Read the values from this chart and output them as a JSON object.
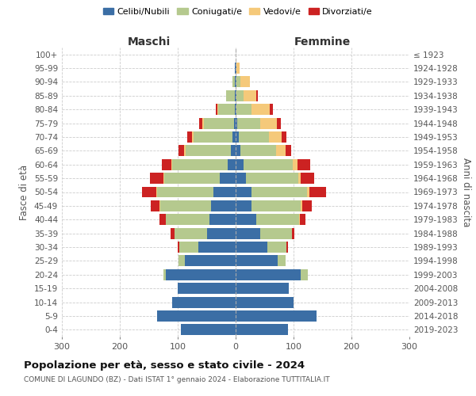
{
  "age_groups": [
    "0-4",
    "5-9",
    "10-14",
    "15-19",
    "20-24",
    "25-29",
    "30-34",
    "35-39",
    "40-44",
    "45-49",
    "50-54",
    "55-59",
    "60-64",
    "65-69",
    "70-74",
    "75-79",
    "80-84",
    "85-89",
    "90-94",
    "95-99",
    "100+"
  ],
  "birth_years": [
    "2019-2023",
    "2014-2018",
    "2009-2013",
    "2004-2008",
    "1999-2003",
    "1994-1998",
    "1989-1993",
    "1984-1988",
    "1979-1983",
    "1974-1978",
    "1969-1973",
    "1964-1968",
    "1959-1963",
    "1954-1958",
    "1949-1953",
    "1944-1948",
    "1939-1943",
    "1934-1938",
    "1929-1933",
    "1924-1928",
    "≤ 1923"
  ],
  "males": {
    "celibi": [
      95,
      135,
      110,
      100,
      120,
      88,
      65,
      50,
      45,
      42,
      38,
      28,
      14,
      8,
      5,
      3,
      2,
      2,
      1,
      1,
      0
    ],
    "coniugati": [
      0,
      0,
      0,
      0,
      5,
      10,
      32,
      55,
      75,
      88,
      97,
      95,
      95,
      78,
      68,
      52,
      28,
      14,
      5,
      1,
      0
    ],
    "vedovi": [
      0,
      0,
      0,
      0,
      0,
      0,
      0,
      0,
      1,
      1,
      2,
      2,
      2,
      3,
      3,
      3,
      2,
      1,
      0,
      0,
      0
    ],
    "divorziati": [
      0,
      0,
      0,
      0,
      0,
      1,
      3,
      7,
      11,
      16,
      25,
      23,
      17,
      9,
      8,
      5,
      2,
      0,
      0,
      0,
      0
    ]
  },
  "females": {
    "nubili": [
      90,
      140,
      100,
      92,
      112,
      72,
      55,
      42,
      35,
      28,
      28,
      18,
      14,
      8,
      5,
      3,
      2,
      2,
      1,
      1,
      0
    ],
    "coniugate": [
      0,
      0,
      0,
      0,
      12,
      14,
      32,
      55,
      75,
      85,
      95,
      90,
      85,
      62,
      52,
      40,
      25,
      12,
      7,
      1,
      0
    ],
    "vedove": [
      0,
      0,
      0,
      0,
      0,
      0,
      0,
      0,
      1,
      2,
      5,
      5,
      8,
      16,
      22,
      28,
      32,
      22,
      16,
      5,
      0
    ],
    "divorziate": [
      0,
      0,
      0,
      0,
      0,
      0,
      3,
      4,
      10,
      16,
      28,
      22,
      22,
      10,
      8,
      7,
      5,
      2,
      0,
      0,
      0
    ]
  },
  "colors": {
    "celibi": "#3B6EA5",
    "coniugati": "#B5C98E",
    "vedovi": "#F5C97A",
    "divorziati": "#CC2222"
  },
  "title": "Popolazione per età, sesso e stato civile - 2024",
  "subtitle": "COMUNE DI LAGUNDO (BZ) - Dati ISTAT 1° gennaio 2024 - Elaborazione TUTTITALIA.IT",
  "xlabel_left": "Maschi",
  "xlabel_right": "Femmine",
  "ylabel_left": "Fasce di età",
  "ylabel_right": "Anni di nascita",
  "xlim": 300,
  "legend_labels": [
    "Celibi/Nubili",
    "Coniugati/e",
    "Vedovi/e",
    "Divorziati/e"
  ],
  "background_color": "#ffffff",
  "grid_color": "#cccccc"
}
